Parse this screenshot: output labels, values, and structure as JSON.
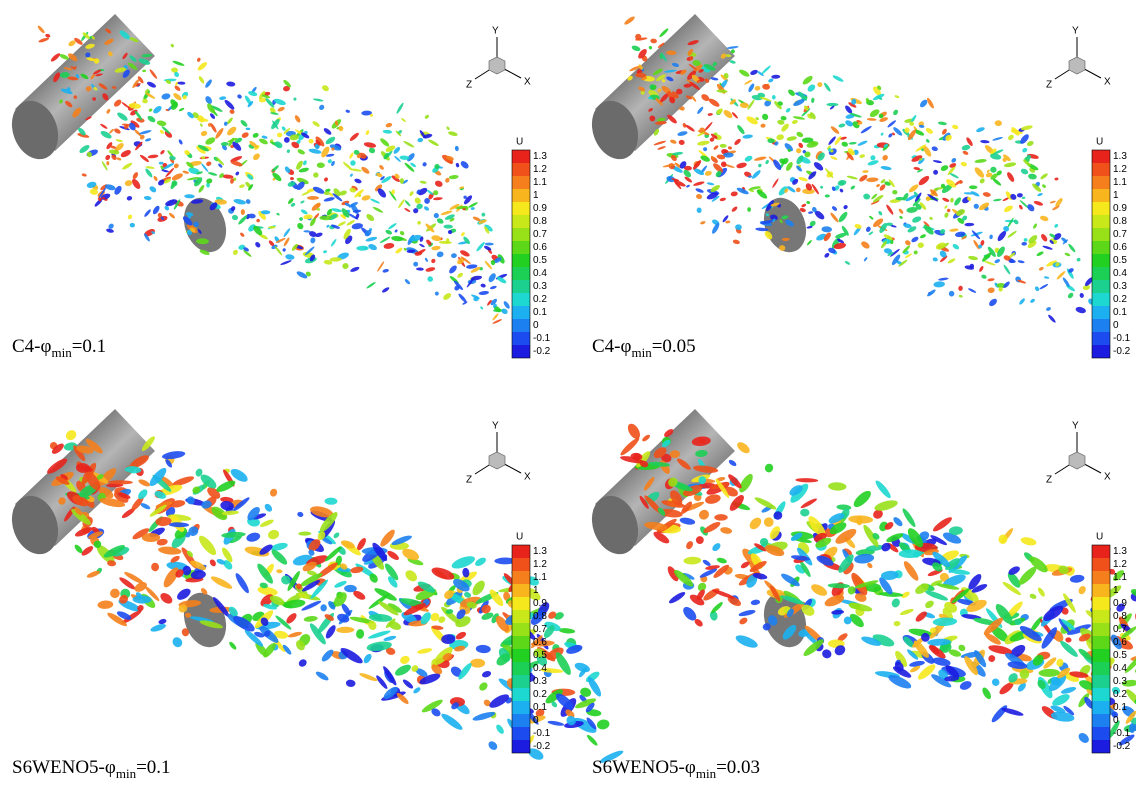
{
  "panels": [
    {
      "caption": {
        "prefix": "C4-φ",
        "sub": "min",
        "suffix": "=0.1"
      }
    },
    {
      "caption": {
        "prefix": "C4-φ",
        "sub": "min",
        "suffix": "=0.05"
      }
    },
    {
      "caption": {
        "prefix": "S6WENO5-φ",
        "sub": "min",
        "suffix": "=0.1"
      }
    },
    {
      "caption": {
        "prefix": "S6WENO5-φ",
        "sub": "min",
        "suffix": "=0.03"
      }
    }
  ],
  "colorbar": {
    "title": "U",
    "ticks": [
      1.3,
      1.2,
      1.1,
      1,
      0.9,
      0.8,
      0.7,
      0.6,
      0.5,
      0.4,
      0.3,
      0.2,
      0.1,
      0,
      -0.1,
      -0.2
    ],
    "colors": [
      "#e8231c",
      "#f0501a",
      "#f57f1c",
      "#f9b51e",
      "#f5e81c",
      "#c8e81a",
      "#98e018",
      "#5cd818",
      "#22d022",
      "#1ccf55",
      "#1cd090",
      "#1cd8d0",
      "#1cb0f0",
      "#1c80f0",
      "#1c4cf0",
      "#1c1ce0"
    ]
  },
  "triad": {
    "x": "X",
    "y": "Y",
    "z": "Z"
  }
}
